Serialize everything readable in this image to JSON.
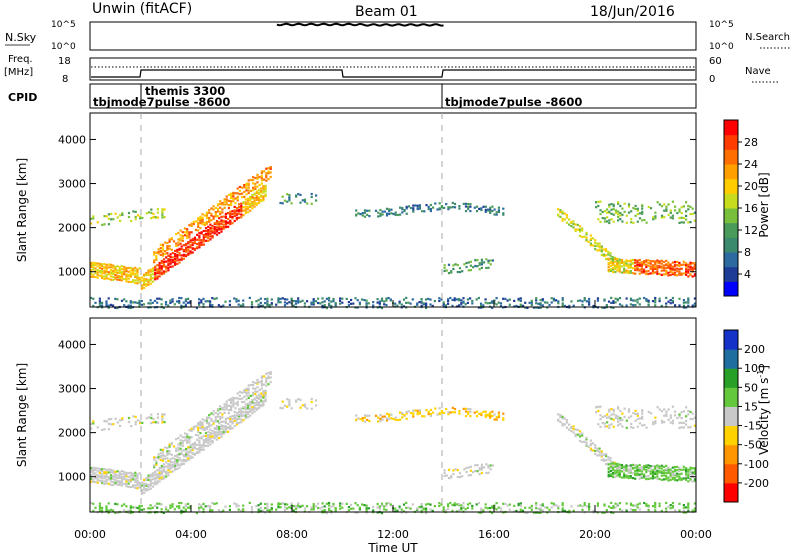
{
  "header": {
    "left": "Unwin (fitACF)",
    "center": "Beam 01",
    "right": "18/Jun/2016"
  },
  "nsky_panel": {
    "label": "N.Sky",
    "yticks": [
      "10^5",
      "10^0"
    ],
    "right_label": "N.Search",
    "right_yticks": [
      "10^5",
      "10^0"
    ]
  },
  "freq_panel": {
    "label_line1": "Freq.",
    "label_line2": "[MHz]",
    "yticks": [
      "18",
      "8"
    ],
    "right_label": "Nave",
    "right_yticks": [
      "60",
      "0"
    ]
  },
  "cpid_panel": {
    "label": "CPID",
    "entries": [
      {
        "text": "tbjmode7pulse -8600",
        "start_hour": 0
      },
      {
        "text": "themis 3300",
        "start_hour": 2
      },
      {
        "text": "tbjmode7pulse -8600",
        "start_hour": 14
      }
    ]
  },
  "chart_data": [
    {
      "type": "heatmap",
      "ylabel": "Slant Range [km]",
      "xlim": [
        0,
        24
      ],
      "ylim": [
        200,
        4600
      ],
      "yticks": [
        1000,
        2000,
        3000,
        4000
      ],
      "colorbar": {
        "label": "Power [dB]",
        "ticks": [
          "28",
          "24",
          "20",
          "16",
          "12",
          "8",
          "4"
        ],
        "colors": [
          "#0000ff",
          "#1e3c96",
          "#2d6a9f",
          "#3c8a6e",
          "#4a9a5a",
          "#78c03c",
          "#c8dc1e",
          "#ffcc00",
          "#ffa000",
          "#ff6e00",
          "#ff3c00",
          "#ff0000"
        ]
      }
    },
    {
      "type": "heatmap",
      "ylabel": "Slant Range [km]",
      "xlabel": "Time UT",
      "xlim": [
        0,
        24
      ],
      "ylim": [
        200,
        4600
      ],
      "yticks": [
        1000,
        2000,
        3000,
        4000
      ],
      "xtick_labels": [
        "00:00",
        "04:00",
        "08:00",
        "12:00",
        "16:00",
        "20:00",
        "00:00"
      ],
      "xtick_values": [
        0,
        4,
        8,
        12,
        16,
        20,
        24
      ],
      "colorbar": {
        "label": "Velocity [m s",
        "ticks": [
          "200",
          "100",
          "50",
          "15",
          "-15",
          "-50",
          "-100",
          "-200"
        ],
        "colors": [
          "#ff0000",
          "#ff5a00",
          "#ff9600",
          "#ffd200",
          "#c8c8c8",
          "#64c83c",
          "#28a028",
          "#1e6ea0",
          "#1432c8"
        ]
      }
    }
  ]
}
